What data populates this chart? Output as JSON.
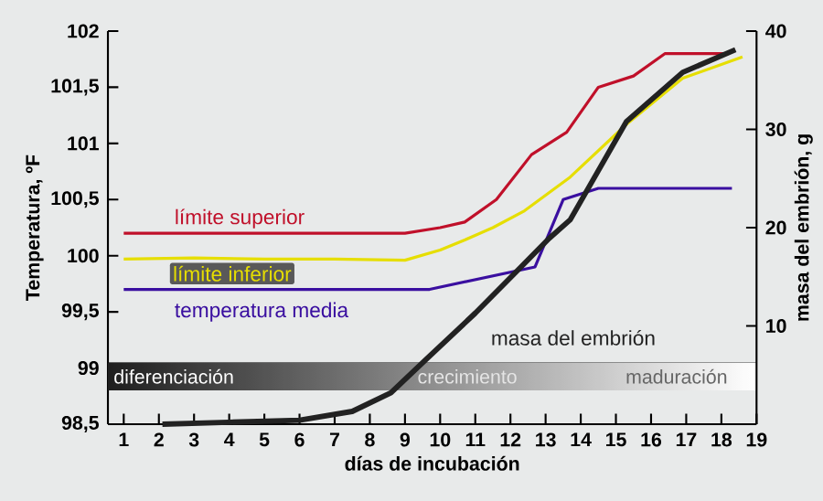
{
  "chart_data": {
    "type": "line",
    "xlabel": "días de incubación",
    "ylabel": "Temperatura, ºF",
    "y2label": "masa del embrión, g",
    "xlim": [
      0.55,
      19
    ],
    "xticks": [
      1,
      2,
      3,
      4,
      5,
      6,
      7,
      8,
      9,
      10,
      11,
      12,
      13,
      14,
      15,
      16,
      17,
      18,
      19
    ],
    "ylim": [
      98.5,
      102
    ],
    "yticks": [
      {
        "value": 98.5,
        "label": "98,5"
      },
      99,
      {
        "value": 99.5,
        "label": "99,5"
      },
      100,
      {
        "value": 100.5,
        "label": "100,5"
      },
      101,
      {
        "value": 101.5,
        "label": "101,5"
      },
      102
    ],
    "y2lim": [
      0,
      40
    ],
    "y2ticks": [
      10,
      20,
      30,
      40
    ],
    "line_style": "solid",
    "series": [
      {
        "name": "límite superior",
        "color": "#c0102a",
        "x": [
          1,
          9,
          10,
          10.7,
          11.6,
          12.6,
          13.6,
          14.5,
          15.5,
          16.4,
          18.2
        ],
        "values": [
          100.2,
          100.2,
          100.25,
          100.3,
          100.5,
          100.9,
          101.1,
          101.5,
          101.6,
          101.8,
          101.8
        ]
      },
      {
        "name": "límite inferior",
        "color": "#e6de00",
        "x": [
          1,
          3,
          5,
          7,
          9,
          10,
          10.7,
          11.5,
          12.4,
          13.7,
          15.3,
          16.9,
          18.6
        ],
        "values": [
          99.97,
          99.98,
          99.97,
          99.97,
          99.96,
          100.05,
          100.14,
          100.25,
          100.4,
          100.7,
          101.17,
          101.58,
          101.77
        ]
      },
      {
        "name": "temperatura media",
        "color": "#3a0fa0",
        "x": [
          1,
          9.7,
          12.7,
          13.5,
          14.5,
          18.3
        ],
        "values": [
          99.7,
          99.7,
          99.9,
          100.5,
          100.6,
          100.6
        ]
      },
      {
        "name": "masa del embrión",
        "color": "#222222",
        "axis": "y2",
        "x": [
          2.1,
          4,
          6,
          7.5,
          8.6,
          9.6,
          11,
          12.3,
          13.1,
          13.7,
          15.3,
          16.9,
          18.4
        ],
        "values": [
          0,
          0.2,
          0.4,
          1.3,
          3.2,
          6.6,
          11.3,
          16,
          18.9,
          20.8,
          30.8,
          35.8,
          38.1
        ]
      }
    ],
    "bands": [
      {
        "axis": "y",
        "from": 98.8,
        "to": 99.05,
        "color": "#1e1e1e"
      }
    ],
    "annotations": [
      "diferenciación",
      "crecimiento",
      "maduración"
    ]
  }
}
